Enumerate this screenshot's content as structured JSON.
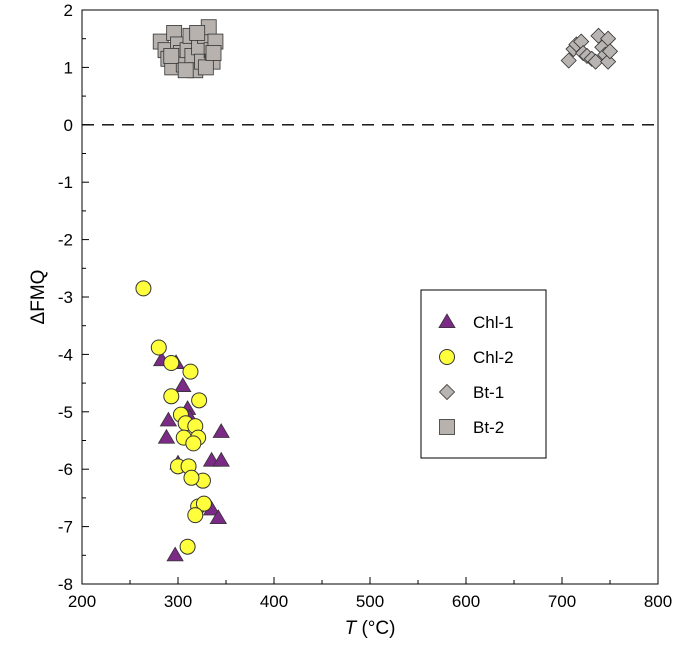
{
  "chart_data": {
    "type": "scatter",
    "xlabel_italic": "T",
    "xlabel_unit": " (°C)",
    "ylabel": "ΔFMQ",
    "xlim": [
      200,
      800
    ],
    "ylim": [
      -8,
      2
    ],
    "x_ticks": [
      "200",
      "300",
      "400",
      "500",
      "600",
      "700",
      "800"
    ],
    "y_ticks": [
      "2",
      "1",
      "0",
      "-1",
      "-2",
      "-3",
      "-4",
      "-5",
      "-6",
      "-7",
      "-8"
    ],
    "reference_line": {
      "y": 0,
      "style": "dashed"
    },
    "legend": {
      "position": "center-right",
      "entries": [
        "Chl-1",
        "Chl-2",
        "Bt-1",
        "Bt-2"
      ]
    },
    "colors": {
      "chl1": "#7b2a86",
      "chl2": "#ffff3c",
      "bt1": "#b8b4b1",
      "bt2": "#b7b2ae",
      "outline": "#333333"
    },
    "series": [
      {
        "name": "Chl-1",
        "marker": "triangle",
        "points": [
          [
            283,
            -4.1
          ],
          [
            298,
            -4.15
          ],
          [
            305,
            -4.55
          ],
          [
            290,
            -5.15
          ],
          [
            310,
            -4.95
          ],
          [
            288,
            -5.45
          ],
          [
            312,
            -5.1
          ],
          [
            300,
            -5.9
          ],
          [
            335,
            -5.85
          ],
          [
            345,
            -5.85
          ],
          [
            345,
            -5.35
          ],
          [
            335,
            -6.7
          ],
          [
            342,
            -6.85
          ],
          [
            297,
            -7.5
          ]
        ]
      },
      {
        "name": "Chl-2",
        "marker": "circle",
        "points": [
          [
            264,
            -2.85
          ],
          [
            280,
            -3.88
          ],
          [
            293,
            -4.15
          ],
          [
            313,
            -4.3
          ],
          [
            293,
            -4.73
          ],
          [
            322,
            -4.8
          ],
          [
            303,
            -5.05
          ],
          [
            308,
            -5.2
          ],
          [
            318,
            -5.25
          ],
          [
            306,
            -5.45
          ],
          [
            321,
            -5.45
          ],
          [
            316,
            -5.55
          ],
          [
            300,
            -5.95
          ],
          [
            311,
            -5.95
          ],
          [
            326,
            -6.2
          ],
          [
            314,
            -6.15
          ],
          [
            321,
            -6.65
          ],
          [
            327,
            -6.6
          ],
          [
            318,
            -6.8
          ],
          [
            310,
            -7.35
          ]
        ]
      },
      {
        "name": "Bt-1",
        "marker": "diamond",
        "points": [
          [
            707,
            1.12
          ],
          [
            712,
            1.32
          ],
          [
            715,
            1.4
          ],
          [
            720,
            1.45
          ],
          [
            722,
            1.25
          ],
          [
            726,
            1.2
          ],
          [
            731,
            1.15
          ],
          [
            735,
            1.1
          ],
          [
            738,
            1.55
          ],
          [
            742,
            1.35
          ],
          [
            745,
            1.22
          ],
          [
            748,
            1.5
          ],
          [
            748,
            1.1
          ],
          [
            750,
            1.28
          ]
        ]
      },
      {
        "name": "Bt-2",
        "marker": "square",
        "points": [
          [
            282,
            1.45
          ],
          [
            287,
            1.3
          ],
          [
            290,
            1.15
          ],
          [
            294,
            1.0
          ],
          [
            296,
            1.6
          ],
          [
            300,
            1.4
          ],
          [
            303,
            1.25
          ],
          [
            306,
            1.05
          ],
          [
            310,
            1.3
          ],
          [
            313,
            1.55
          ],
          [
            315,
            1.2
          ],
          [
            318,
            0.95
          ],
          [
            322,
            1.35
          ],
          [
            325,
            1.1
          ],
          [
            328,
            1.55
          ],
          [
            332,
            1.7
          ],
          [
            335,
            1.3
          ],
          [
            336,
            1.1
          ],
          [
            339,
            1.45
          ],
          [
            293,
            1.2
          ],
          [
            308,
            0.95
          ],
          [
            320,
            1.6
          ],
          [
            329,
            1.0
          ],
          [
            337,
            1.25
          ]
        ]
      }
    ]
  }
}
